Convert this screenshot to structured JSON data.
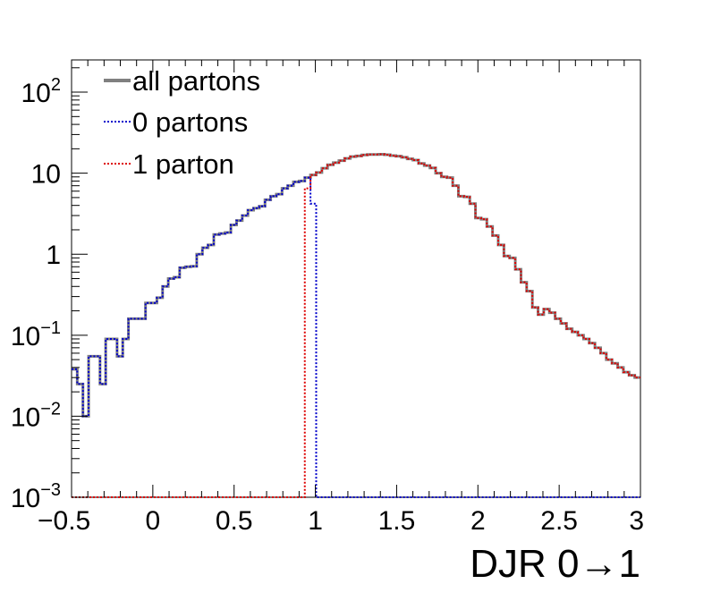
{
  "chart_data": {
    "type": "line",
    "style": "step-histogram",
    "title": "",
    "xlabel": "DJR 0→1",
    "ylabel": "",
    "xlim": [
      -0.5,
      3
    ],
    "ylim": [
      0.001,
      250
    ],
    "yscale": "log",
    "grid": false,
    "legend_position": "top-left",
    "x_ticks": [
      "−0.5",
      "0",
      "0.5",
      "1",
      "1.5",
      "2",
      "2.5",
      "3"
    ],
    "y_ticks": [
      {
        "base": "10",
        "exp": "−3",
        "value": 0.001
      },
      {
        "base": "10",
        "exp": "−2",
        "value": 0.01
      },
      {
        "base": "10",
        "exp": "−1",
        "value": 0.1
      },
      {
        "base": "1",
        "exp": "",
        "value": 1
      },
      {
        "base": "10",
        "exp": "",
        "value": 10
      },
      {
        "base": "10",
        "exp": "2",
        "value": 100
      }
    ],
    "bin_edges": [
      -0.5,
      -0.465,
      -0.43,
      -0.395,
      -0.36,
      -0.325,
      -0.29,
      -0.255,
      -0.22,
      -0.185,
      -0.15,
      -0.115,
      -0.08,
      -0.045,
      -0.01,
      0.025,
      0.06,
      0.095,
      0.13,
      0.165,
      0.2,
      0.235,
      0.27,
      0.305,
      0.34,
      0.375,
      0.41,
      0.445,
      0.48,
      0.515,
      0.55,
      0.585,
      0.62,
      0.655,
      0.69,
      0.725,
      0.76,
      0.795,
      0.83,
      0.865,
      0.9,
      0.935,
      0.97,
      1.005,
      1.04,
      1.075,
      1.11,
      1.145,
      1.18,
      1.215,
      1.25,
      1.285,
      1.32,
      1.355,
      1.39,
      1.425,
      1.46,
      1.495,
      1.53,
      1.565,
      1.6,
      1.635,
      1.67,
      1.705,
      1.74,
      1.775,
      1.81,
      1.845,
      1.88,
      1.915,
      1.95,
      1.985,
      2.02,
      2.055,
      2.09,
      2.125,
      2.16,
      2.195,
      2.23,
      2.265,
      2.3,
      2.335,
      2.37,
      2.405,
      2.44,
      2.475,
      2.51,
      2.545,
      2.58,
      2.615,
      2.65,
      2.685,
      2.72,
      2.755,
      2.79,
      2.825,
      2.86,
      2.895,
      2.93,
      2.965,
      3.0
    ],
    "series": [
      {
        "name": "all partons",
        "color": "#808080",
        "dash": "solid",
        "values": [
          0.038,
          0.025,
          0.01,
          0.055,
          0.055,
          0.025,
          0.09,
          0.09,
          0.055,
          0.09,
          0.16,
          0.16,
          0.16,
          0.25,
          0.25,
          0.29,
          0.4,
          0.5,
          0.52,
          0.68,
          0.7,
          0.71,
          1.0,
          1.2,
          1.3,
          1.75,
          1.8,
          1.85,
          2.3,
          2.6,
          3.0,
          3.5,
          3.7,
          3.9,
          4.7,
          5.2,
          5.5,
          6.5,
          7.0,
          7.8,
          8.0,
          8.8,
          9.5,
          10.2,
          11.5,
          12.7,
          13.5,
          14.3,
          15.2,
          16.0,
          16.3,
          16.8,
          17.0,
          17.0,
          17.1,
          16.9,
          16.5,
          16.2,
          15.7,
          15.0,
          14.5,
          13.2,
          12.4,
          11.6,
          10.0,
          9.0,
          8.8,
          7.0,
          5.2,
          5.1,
          4.2,
          2.8,
          2.7,
          2.2,
          1.7,
          1.3,
          0.95,
          0.9,
          0.65,
          0.45,
          0.35,
          0.22,
          0.18,
          0.21,
          0.19,
          0.16,
          0.14,
          0.12,
          0.11,
          0.1,
          0.09,
          0.08,
          0.07,
          0.06,
          0.05,
          0.045,
          0.04,
          0.035,
          0.032,
          0.03
        ]
      },
      {
        "name": "0 partons",
        "color": "#0000cc",
        "dash": "dotted",
        "values": [
          0.038,
          0.025,
          0.01,
          0.055,
          0.055,
          0.025,
          0.09,
          0.09,
          0.055,
          0.09,
          0.16,
          0.16,
          0.16,
          0.25,
          0.25,
          0.29,
          0.4,
          0.5,
          0.52,
          0.68,
          0.7,
          0.71,
          1.0,
          1.2,
          1.3,
          1.75,
          1.8,
          1.85,
          2.3,
          2.6,
          3.0,
          3.5,
          3.7,
          3.9,
          4.7,
          5.2,
          5.5,
          6.5,
          7.0,
          7.8,
          8.0,
          8.8,
          4.2,
          0,
          0,
          0,
          0,
          0,
          0,
          0,
          0,
          0,
          0,
          0,
          0,
          0,
          0,
          0,
          0,
          0,
          0,
          0,
          0,
          0,
          0,
          0,
          0,
          0,
          0,
          0,
          0,
          0,
          0,
          0,
          0,
          0,
          0,
          0,
          0,
          0,
          0,
          0,
          0,
          0,
          0,
          0,
          0,
          0,
          0,
          0,
          0,
          0,
          0,
          0,
          0,
          0,
          0,
          0,
          0,
          0
        ]
      },
      {
        "name": "1 parton",
        "color": "#dd0000",
        "dash": "dotted",
        "values": [
          0,
          0,
          0,
          0,
          0,
          0,
          0,
          0,
          0,
          0,
          0,
          0,
          0,
          0,
          0,
          0,
          0,
          0,
          0,
          0,
          0,
          0,
          0,
          0,
          0,
          0,
          0,
          0,
          0,
          0,
          0,
          0,
          0,
          0,
          0,
          0,
          0,
          0,
          0,
          0,
          0,
          6.5,
          9.5,
          10.2,
          11.5,
          12.7,
          13.5,
          14.3,
          15.2,
          16.0,
          16.3,
          16.8,
          17.0,
          17.0,
          17.1,
          16.9,
          16.5,
          16.2,
          15.7,
          15.0,
          14.5,
          13.2,
          12.4,
          11.6,
          10.0,
          9.0,
          8.8,
          7.0,
          5.2,
          5.1,
          4.2,
          2.8,
          2.7,
          2.2,
          1.7,
          1.3,
          0.95,
          0.9,
          0.65,
          0.45,
          0.35,
          0.22,
          0.18,
          0.21,
          0.19,
          0.16,
          0.14,
          0.12,
          0.11,
          0.1,
          0.09,
          0.08,
          0.07,
          0.06,
          0.05,
          0.045,
          0.04,
          0.035,
          0.032,
          0.03
        ]
      }
    ]
  }
}
